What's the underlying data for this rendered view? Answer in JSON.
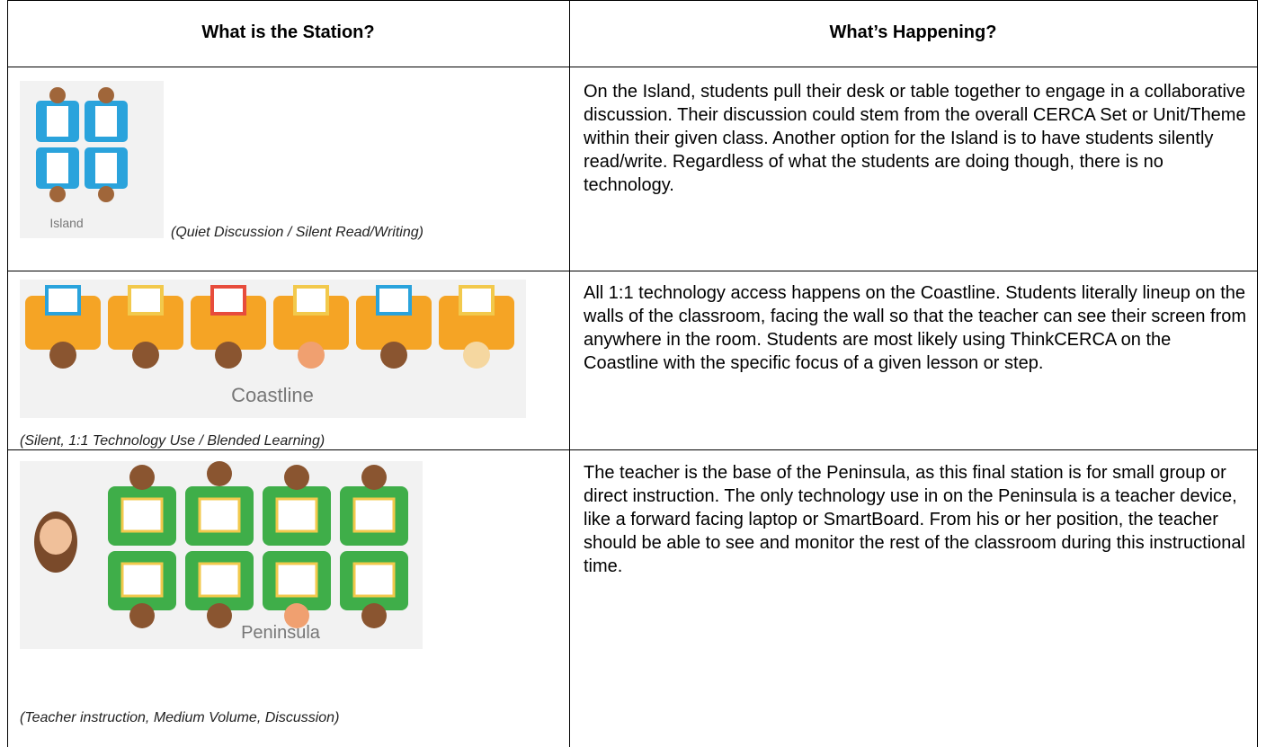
{
  "table": {
    "headers": [
      "What is the Station?",
      "What’s Happening?"
    ],
    "rows": [
      {
        "image_label": "Island",
        "caption": "(Quiet Discussion / Silent Read/Writing)",
        "description": "On the Island, students pull their desk or table together to engage in a collaborative discussion. Their discussion could stem from the overall CERCA Set or Unit/Theme within their given class. Another option for the Island is to have students silently read/write. Regardless of what the students are doing though, there is no technology."
      },
      {
        "image_label": "Coastline",
        "caption": "(Silent, 1:1 Technology Use / Blended Learning)",
        "description": "All 1:1 technology access happens on the Coastline. Students literally lineup on the walls of the classroom, facing the wall so that the teacher can see their screen from anywhere in the room. Students are most likely using ThinkCERCA on the Coastline with the specific focus of a given lesson or step."
      },
      {
        "image_label": "Peninsula",
        "caption": "(Teacher instruction, Medium Volume, Discussion)",
        "description": "The teacher is the base of the Peninsula, as this final station is for small group or direct instruction. The only technology use in on the Peninsula is a teacher device, like a forward facing laptop or SmartBoard. From his or her position, the teacher should be able to see and monitor the rest of the classroom during this instructional time."
      }
    ]
  }
}
